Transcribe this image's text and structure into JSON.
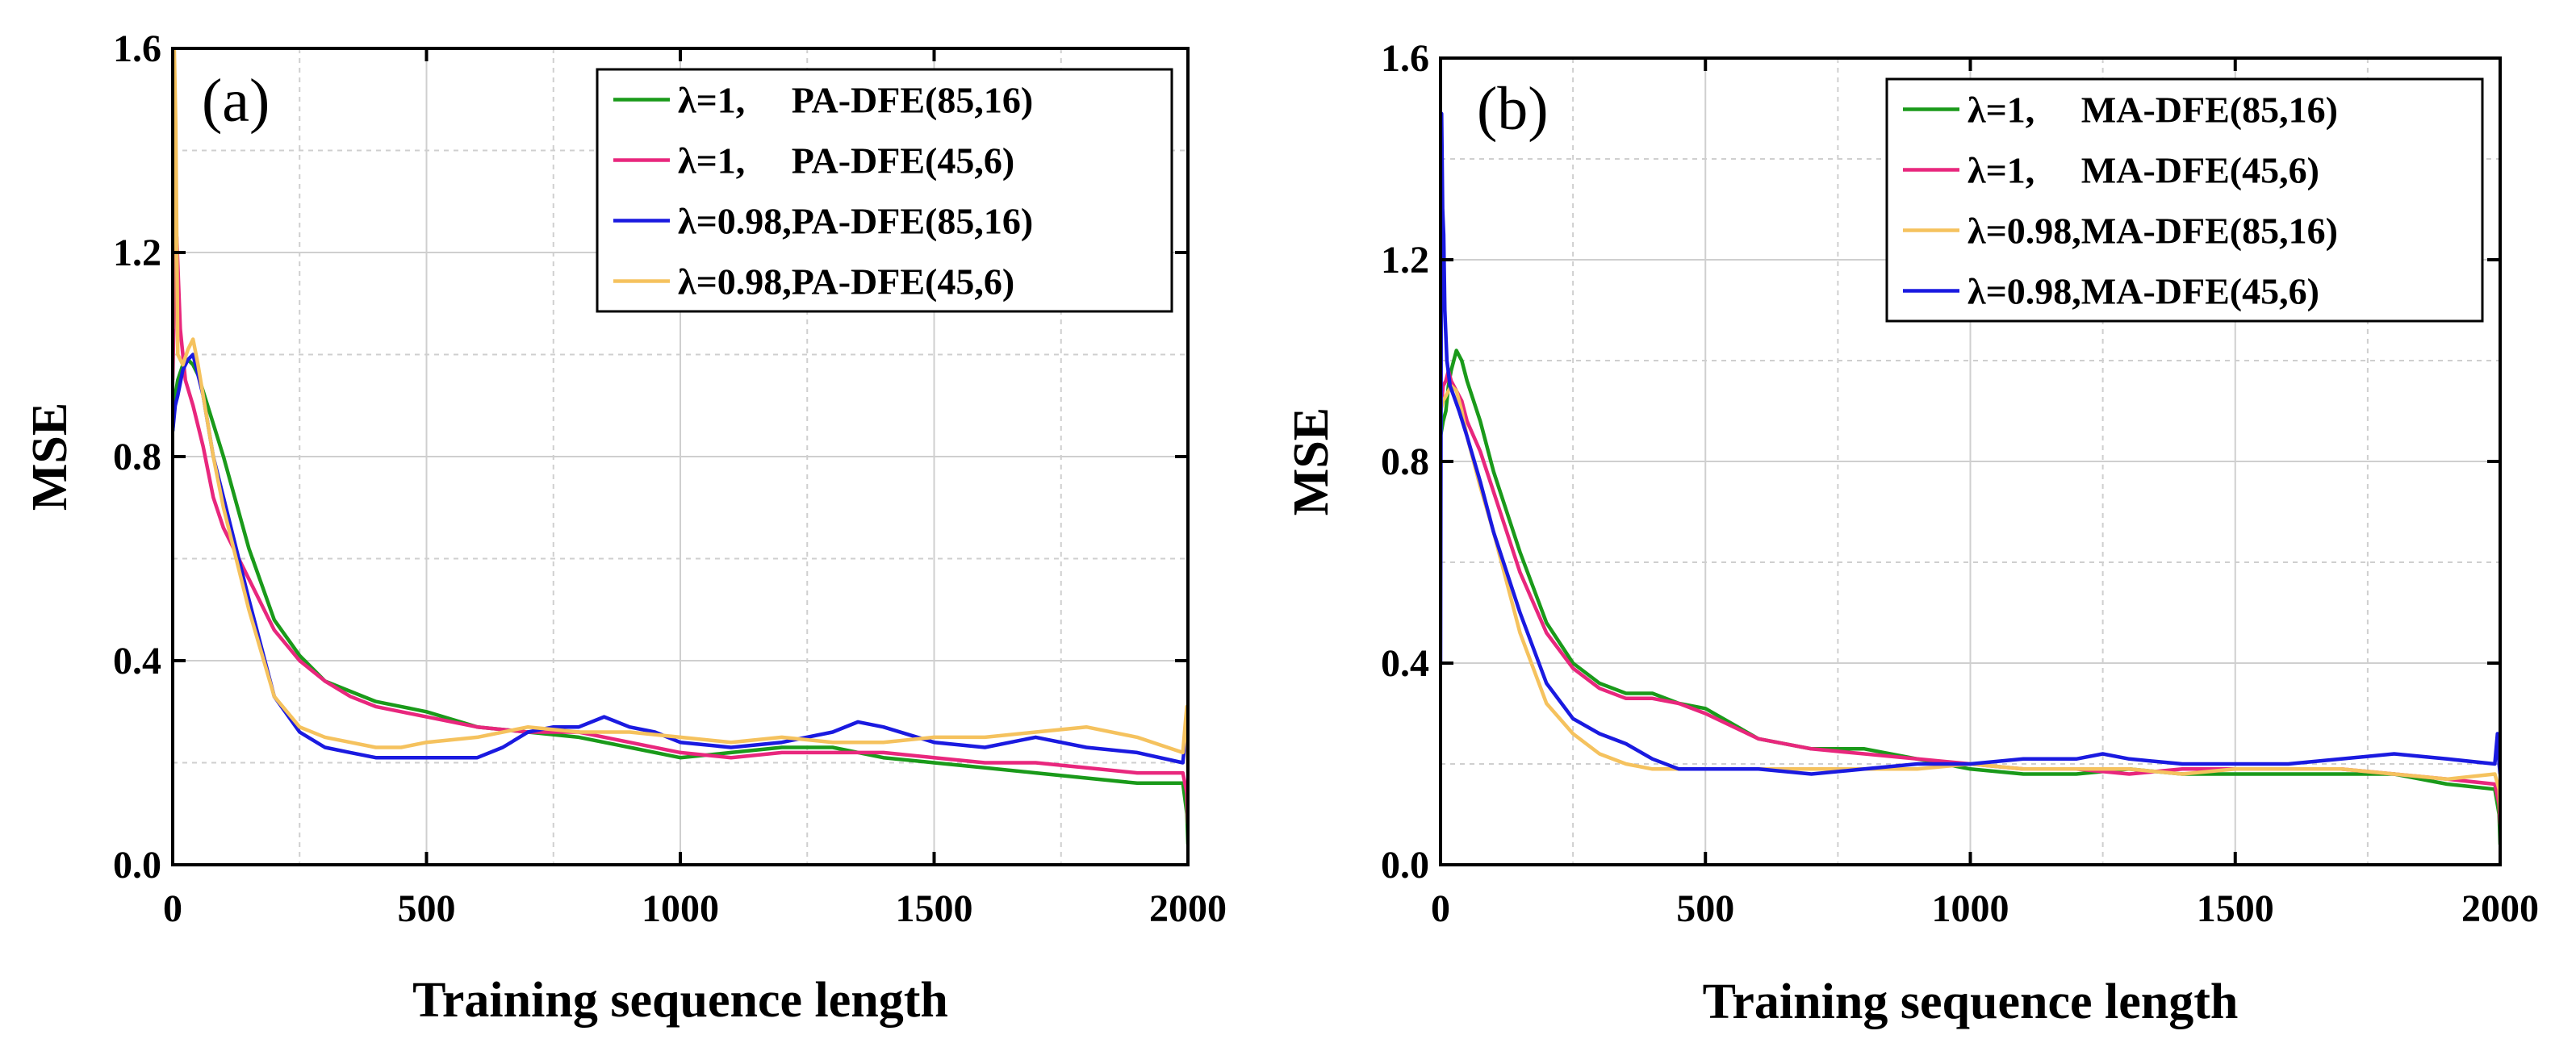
{
  "chart_data": [
    {
      "type": "line",
      "panel_label": "(a)",
      "xlabel": "Training sequence length",
      "ylabel": "MSE",
      "xlim": [
        0,
        2000
      ],
      "ylim": [
        0,
        1.6
      ],
      "xticks": [
        "0",
        "500",
        "1000",
        "1500",
        "2000"
      ],
      "yticks": [
        "0.0",
        "0.4",
        "0.8",
        "1.2",
        "1.6"
      ],
      "grid": true,
      "legend_position": "top-right",
      "series": [
        {
          "name": "λ=1,     PA-DFE(85,16)",
          "color": "#1a9a1a",
          "x": [
            0,
            5,
            10,
            20,
            30,
            40,
            50,
            75,
            100,
            150,
            200,
            250,
            300,
            350,
            400,
            450,
            500,
            600,
            700,
            800,
            900,
            1000,
            1100,
            1200,
            1300,
            1400,
            1500,
            1600,
            1700,
            1800,
            1900,
            1990,
            1998,
            2000
          ],
          "y": [
            0.85,
            0.92,
            0.95,
            0.98,
            0.99,
            0.98,
            0.96,
            0.88,
            0.8,
            0.62,
            0.48,
            0.41,
            0.36,
            0.34,
            0.32,
            0.31,
            0.3,
            0.27,
            0.26,
            0.25,
            0.23,
            0.21,
            0.22,
            0.23,
            0.23,
            0.21,
            0.2,
            0.19,
            0.18,
            0.17,
            0.16,
            0.16,
            0.1,
            0.04
          ]
        },
        {
          "name": "λ=1,     PA-DFE(45,6)",
          "color": "#e8277d",
          "x": [
            0,
            5,
            8,
            15,
            25,
            40,
            60,
            80,
            100,
            150,
            200,
            250,
            300,
            350,
            400,
            450,
            500,
            600,
            700,
            800,
            900,
            1000,
            1100,
            1200,
            1300,
            1400,
            1500,
            1600,
            1700,
            1800,
            1900,
            1990,
            1998,
            2000
          ],
          "y": [
            0.95,
            1.2,
            1.23,
            1.05,
            0.95,
            0.9,
            0.82,
            0.72,
            0.66,
            0.56,
            0.46,
            0.4,
            0.36,
            0.33,
            0.31,
            0.3,
            0.29,
            0.27,
            0.26,
            0.26,
            0.24,
            0.22,
            0.21,
            0.22,
            0.22,
            0.22,
            0.21,
            0.2,
            0.2,
            0.19,
            0.18,
            0.18,
            0.14,
            0.08
          ]
        },
        {
          "name": "λ=0.98,PA-DFE(85,16)",
          "color": "#1a1ae0",
          "x": [
            0,
            5,
            10,
            20,
            30,
            40,
            60,
            80,
            100,
            150,
            200,
            250,
            300,
            350,
            400,
            450,
            500,
            550,
            600,
            650,
            700,
            750,
            800,
            850,
            900,
            950,
            1000,
            1100,
            1200,
            1300,
            1350,
            1400,
            1500,
            1600,
            1700,
            1800,
            1900,
            1990,
            1995,
            1998,
            2000
          ],
          "y": [
            0.85,
            0.9,
            0.92,
            0.97,
            0.99,
            1.0,
            0.92,
            0.8,
            0.72,
            0.52,
            0.33,
            0.26,
            0.23,
            0.22,
            0.21,
            0.21,
            0.21,
            0.21,
            0.21,
            0.23,
            0.26,
            0.27,
            0.27,
            0.29,
            0.27,
            0.26,
            0.24,
            0.23,
            0.24,
            0.26,
            0.28,
            0.27,
            0.24,
            0.23,
            0.25,
            0.23,
            0.22,
            0.2,
            0.25,
            0.28,
            0.22
          ]
        },
        {
          "name": "λ=0.98,PA-DFE(45,6)",
          "color": "#f5c25e",
          "x": [
            0,
            3,
            6,
            10,
            20,
            30,
            40,
            50,
            60,
            80,
            100,
            150,
            200,
            250,
            300,
            350,
            400,
            450,
            500,
            600,
            700,
            800,
            900,
            1000,
            1100,
            1200,
            1300,
            1400,
            1500,
            1600,
            1700,
            1800,
            1900,
            1990,
            1995,
            1998,
            2000
          ],
          "y": [
            1.05,
            1.6,
            1.45,
            1.0,
            0.98,
            1.01,
            1.03,
            0.98,
            0.92,
            0.8,
            0.7,
            0.5,
            0.33,
            0.27,
            0.25,
            0.24,
            0.23,
            0.23,
            0.24,
            0.25,
            0.27,
            0.26,
            0.26,
            0.25,
            0.24,
            0.25,
            0.24,
            0.24,
            0.25,
            0.25,
            0.26,
            0.27,
            0.25,
            0.22,
            0.28,
            0.31,
            0.18
          ]
        }
      ]
    },
    {
      "type": "line",
      "panel_label": "(b)",
      "xlabel": "Training sequence length",
      "ylabel": "MSE",
      "xlim": [
        0,
        2000
      ],
      "ylim": [
        0,
        1.6
      ],
      "xticks": [
        "0",
        "500",
        "1000",
        "1500",
        "2000"
      ],
      "yticks": [
        "0.0",
        "0.4",
        "0.8",
        "1.2",
        "1.6"
      ],
      "grid": true,
      "legend_position": "top-right",
      "series": [
        {
          "name": "λ=1,     MA-DFE(85,16)",
          "color": "#1a9a1a",
          "x": [
            0,
            5,
            10,
            15,
            20,
            30,
            40,
            50,
            75,
            100,
            150,
            200,
            250,
            300,
            350,
            400,
            450,
            500,
            600,
            700,
            800,
            900,
            1000,
            1100,
            1200,
            1300,
            1400,
            1500,
            1600,
            1700,
            1800,
            1900,
            1990,
            1998,
            2000
          ],
          "y": [
            0.85,
            0.88,
            0.9,
            0.95,
            0.98,
            1.02,
            1.0,
            0.96,
            0.88,
            0.78,
            0.62,
            0.48,
            0.4,
            0.36,
            0.34,
            0.34,
            0.32,
            0.31,
            0.25,
            0.23,
            0.23,
            0.21,
            0.19,
            0.18,
            0.18,
            0.19,
            0.18,
            0.18,
            0.18,
            0.18,
            0.18,
            0.16,
            0.15,
            0.1,
            0.04
          ]
        },
        {
          "name": "λ=1,     MA-DFE(45,6)",
          "color": "#e8277d",
          "x": [
            0,
            5,
            10,
            15,
            20,
            30,
            40,
            50,
            75,
            100,
            150,
            200,
            250,
            300,
            350,
            400,
            450,
            500,
            600,
            700,
            800,
            900,
            1000,
            1100,
            1200,
            1300,
            1400,
            1500,
            1600,
            1700,
            1800,
            1900,
            1990,
            1998,
            2000
          ],
          "y": [
            0.9,
            0.95,
            0.96,
            0.98,
            0.96,
            0.94,
            0.92,
            0.88,
            0.82,
            0.74,
            0.58,
            0.46,
            0.39,
            0.35,
            0.33,
            0.33,
            0.32,
            0.3,
            0.25,
            0.23,
            0.22,
            0.21,
            0.2,
            0.19,
            0.19,
            0.18,
            0.19,
            0.19,
            0.19,
            0.19,
            0.18,
            0.17,
            0.16,
            0.12,
            0.08
          ]
        },
        {
          "name": "λ=0.98,MA-DFE(85,16)",
          "color": "#f5c25e",
          "x": [
            0,
            5,
            10,
            20,
            30,
            40,
            50,
            75,
            100,
            150,
            200,
            250,
            300,
            350,
            400,
            450,
            500,
            600,
            700,
            800,
            900,
            1000,
            1100,
            1200,
            1300,
            1400,
            1500,
            1600,
            1700,
            1800,
            1900,
            1990,
            1998,
            2000
          ],
          "y": [
            0.9,
            0.92,
            0.93,
            0.95,
            0.94,
            0.9,
            0.85,
            0.75,
            0.66,
            0.46,
            0.32,
            0.26,
            0.22,
            0.2,
            0.19,
            0.19,
            0.19,
            0.19,
            0.19,
            0.19,
            0.19,
            0.2,
            0.19,
            0.19,
            0.19,
            0.18,
            0.19,
            0.19,
            0.19,
            0.18,
            0.17,
            0.18,
            0.15,
            0.1
          ]
        },
        {
          "name": "λ=0.98,MA-DFE(45,6)",
          "color": "#1a1ae0",
          "x": [
            0,
            2,
            4,
            6,
            8,
            12,
            18,
            25,
            35,
            50,
            75,
            100,
            150,
            200,
            250,
            300,
            350,
            400,
            450,
            500,
            600,
            700,
            800,
            900,
            1000,
            1100,
            1200,
            1250,
            1300,
            1400,
            1500,
            1600,
            1700,
            1800,
            1900,
            1990,
            1995,
            1998,
            2000
          ],
          "y": [
            0.4,
            1.49,
            1.3,
            1.25,
            1.1,
            1.0,
            0.95,
            0.93,
            0.9,
            0.85,
            0.76,
            0.66,
            0.5,
            0.36,
            0.29,
            0.26,
            0.24,
            0.21,
            0.19,
            0.19,
            0.19,
            0.18,
            0.19,
            0.2,
            0.2,
            0.21,
            0.21,
            0.22,
            0.21,
            0.2,
            0.2,
            0.2,
            0.21,
            0.22,
            0.21,
            0.2,
            0.26,
            0.2,
            0.18
          ]
        }
      ]
    }
  ]
}
